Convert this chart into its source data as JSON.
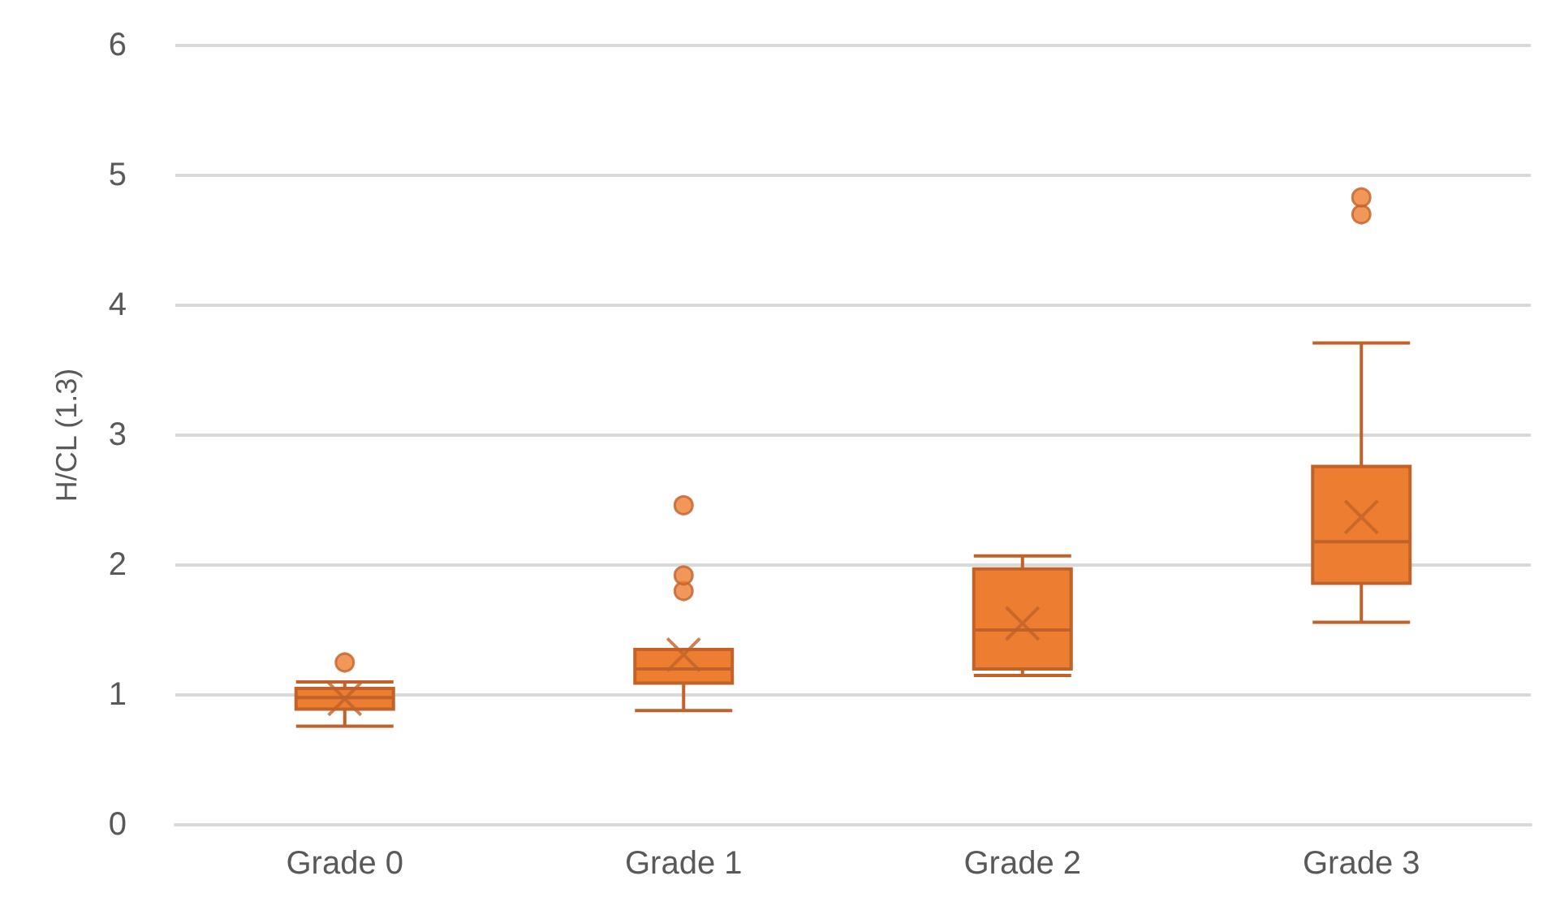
{
  "chart_data": {
    "type": "box",
    "ylabel": "H/CL (1.3)",
    "categories": [
      "Grade 0",
      "Grade 1",
      "Grade 2",
      "Grade 3"
    ],
    "ylim": [
      0,
      6
    ],
    "yticks": [
      0,
      1,
      2,
      3,
      4,
      5,
      6
    ],
    "grid": "y",
    "series": [
      {
        "color": "#ed7d31",
        "boxes": [
          {
            "low": 0.76,
            "q1": 0.89,
            "median": 0.98,
            "q3": 1.05,
            "high": 1.1,
            "mean": 0.97,
            "outliers": [
              1.25
            ]
          },
          {
            "low": 0.88,
            "q1": 1.09,
            "median": 1.2,
            "q3": 1.35,
            "high": 1.35,
            "mean": 1.31,
            "outliers": [
              1.8,
              1.92,
              2.46
            ]
          },
          {
            "low": 1.15,
            "q1": 1.2,
            "median": 1.5,
            "q3": 1.97,
            "high": 2.07,
            "mean": 1.55
          },
          {
            "low": 1.56,
            "q1": 1.86,
            "median": 2.18,
            "q3": 2.76,
            "high": 3.71,
            "mean": 2.37,
            "outliers": [
              4.7,
              4.83
            ]
          }
        ]
      }
    ]
  }
}
